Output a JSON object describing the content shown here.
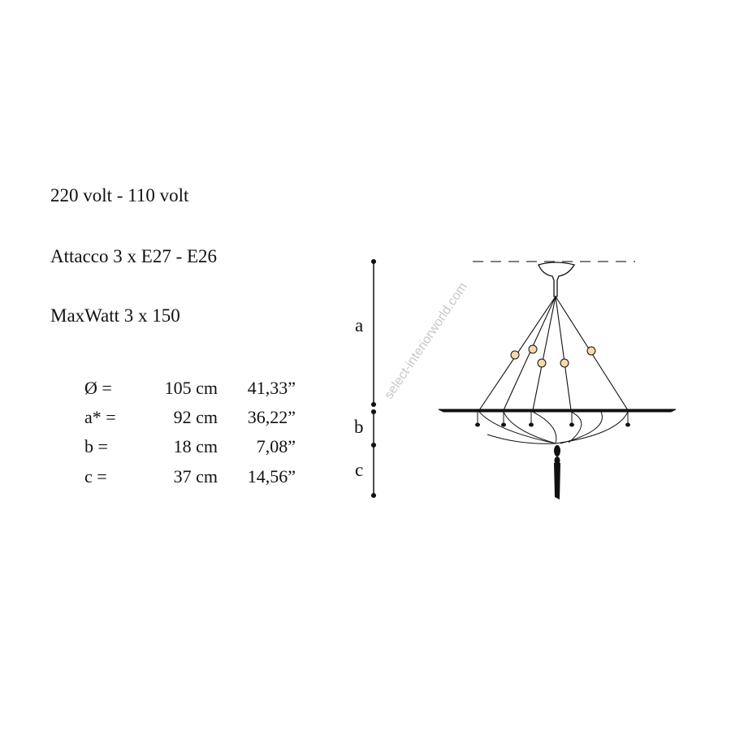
{
  "specs": {
    "voltage": "220 volt - 110 volt",
    "socket": "Attacco 3 x E27 - E26",
    "wattage": "MaxWatt 3 x 150"
  },
  "dimensions": [
    {
      "label": "Ø =",
      "cm": "105  cm",
      "inch": "41,33”"
    },
    {
      "label": "a* =",
      "cm": "92 cm",
      "inch": "36,22”"
    },
    {
      "label": "b  =",
      "cm": "18 cm",
      "inch": "7,08”"
    },
    {
      "label": "c  =",
      "cm": "37 cm",
      "inch": "14,56”"
    }
  ],
  "drawing": {
    "labels": {
      "a": "a",
      "b": "b",
      "c": "c"
    },
    "bead_color": "#f5d9a8"
  },
  "watermark": "select-interiorworld.com"
}
